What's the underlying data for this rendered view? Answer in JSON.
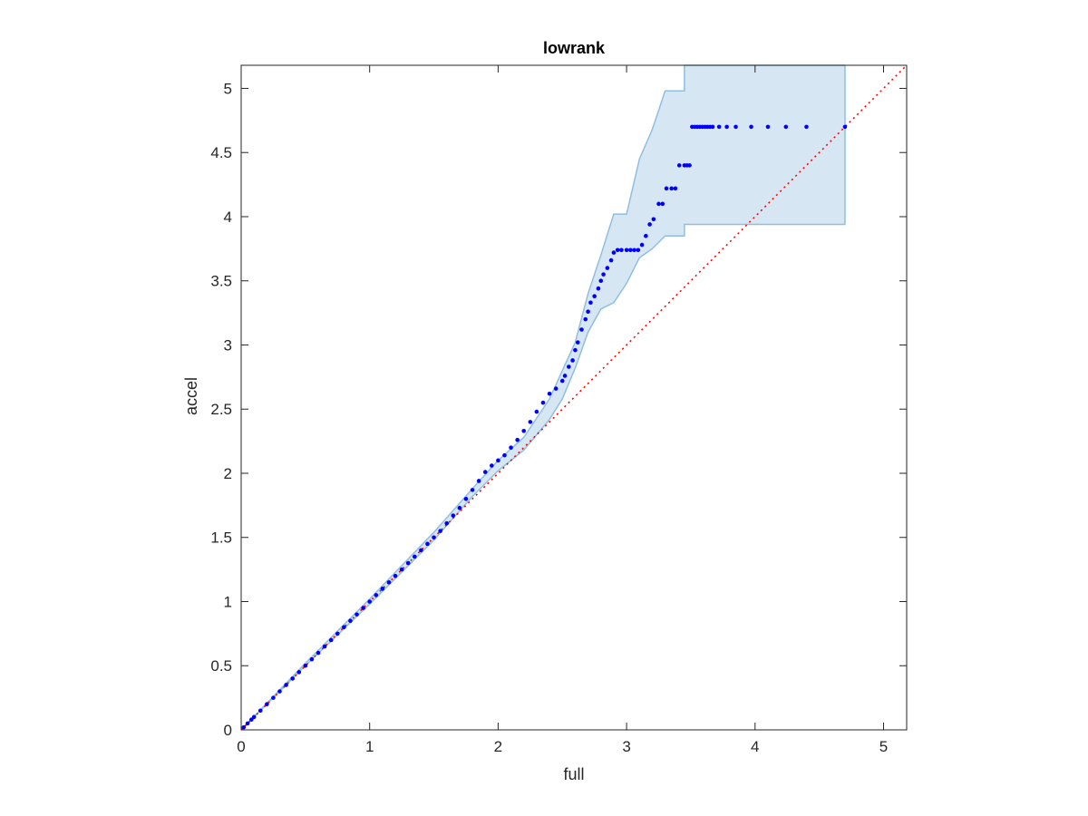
{
  "chart_data": {
    "type": "scatter",
    "title": "lowrank",
    "xlabel": "full",
    "ylabel": "accel",
    "xlim": [
      0,
      5.18
    ],
    "ylim": [
      0,
      5.18
    ],
    "xticks": [
      "0",
      "1",
      "2",
      "3",
      "4",
      "5"
    ],
    "yticks": [
      "0",
      "0.5",
      "1",
      "1.5",
      "2",
      "2.5",
      "3",
      "3.5",
      "4",
      "4.5",
      "5"
    ],
    "grid": false,
    "colors": {
      "points": "#0000ff",
      "reference_line": "#ff0000",
      "band_fill": "#d6e6f3",
      "band_edge": "#8fbfe0",
      "axes": "#262626"
    },
    "reference_line": {
      "style": "dotted",
      "points": [
        [
          0,
          0
        ],
        [
          5.18,
          5.18
        ]
      ]
    },
    "confidence_band": {
      "upper": [
        [
          0,
          0
        ],
        [
          0.5,
          0.52
        ],
        [
          1,
          1.02
        ],
        [
          1.5,
          1.54
        ],
        [
          1.8,
          1.88
        ],
        [
          2,
          2.1
        ],
        [
          2.2,
          2.28
        ],
        [
          2.4,
          2.58
        ],
        [
          2.5,
          2.8
        ],
        [
          2.6,
          3.02
        ],
        [
          2.7,
          3.4
        ],
        [
          2.8,
          3.7
        ],
        [
          2.9,
          4.02
        ],
        [
          3.0,
          4.02
        ],
        [
          3.1,
          4.45
        ],
        [
          3.2,
          4.68
        ],
        [
          3.3,
          4.98
        ],
        [
          3.45,
          4.98
        ],
        [
          3.45,
          5.18
        ],
        [
          4.7,
          5.18
        ]
      ],
      "lower": [
        [
          0,
          0
        ],
        [
          0.5,
          0.5
        ],
        [
          1,
          0.98
        ],
        [
          1.5,
          1.48
        ],
        [
          1.8,
          1.82
        ],
        [
          2,
          2.02
        ],
        [
          2.2,
          2.18
        ],
        [
          2.4,
          2.42
        ],
        [
          2.5,
          2.58
        ],
        [
          2.6,
          2.82
        ],
        [
          2.7,
          3.1
        ],
        [
          2.8,
          3.28
        ],
        [
          2.9,
          3.33
        ],
        [
          3.0,
          3.48
        ],
        [
          3.1,
          3.68
        ],
        [
          3.2,
          3.75
        ],
        [
          3.3,
          3.85
        ],
        [
          3.45,
          3.85
        ],
        [
          3.45,
          3.94
        ],
        [
          4.7,
          3.94
        ]
      ]
    },
    "series": [
      {
        "x": [
          0.02,
          0.05,
          0.08,
          0.1,
          0.15,
          0.2,
          0.25,
          0.3,
          0.35,
          0.4,
          0.45,
          0.5,
          0.55,
          0.6,
          0.65,
          0.7,
          0.75,
          0.8,
          0.85,
          0.9,
          0.95,
          1.0,
          1.05,
          1.1,
          1.15,
          1.2,
          1.25,
          1.3,
          1.35,
          1.4,
          1.45,
          1.5,
          1.55,
          1.6,
          1.65,
          1.7,
          1.75,
          1.8,
          1.85,
          1.9,
          1.95,
          2.0,
          2.05,
          2.1,
          2.15,
          2.2,
          2.25,
          2.3,
          2.35,
          2.4,
          2.45,
          2.5,
          2.52,
          2.55,
          2.58,
          2.6,
          2.62,
          2.65,
          2.68,
          2.7,
          2.72,
          2.75,
          2.78,
          2.8,
          2.82,
          2.85,
          2.88,
          2.9,
          2.93,
          2.96,
          3.0,
          3.03,
          3.06,
          3.09,
          3.12,
          3.15,
          3.18,
          3.21,
          3.25,
          3.28,
          3.31,
          3.35,
          3.38,
          3.41,
          3.45,
          3.47,
          3.49,
          3.51,
          3.53,
          3.55,
          3.57,
          3.59,
          3.61,
          3.63,
          3.65,
          3.67,
          3.72,
          3.78,
          3.85,
          3.97,
          4.1,
          4.24,
          4.4,
          4.7
        ],
        "y": [
          0.02,
          0.05,
          0.08,
          0.1,
          0.15,
          0.2,
          0.25,
          0.3,
          0.35,
          0.4,
          0.45,
          0.5,
          0.55,
          0.6,
          0.65,
          0.7,
          0.75,
          0.8,
          0.85,
          0.9,
          0.95,
          1.0,
          1.05,
          1.1,
          1.15,
          1.2,
          1.25,
          1.3,
          1.35,
          1.4,
          1.45,
          1.5,
          1.55,
          1.61,
          1.67,
          1.73,
          1.8,
          1.87,
          1.94,
          2.01,
          2.06,
          2.1,
          2.14,
          2.2,
          2.26,
          2.33,
          2.4,
          2.48,
          2.55,
          2.62,
          2.66,
          2.72,
          2.76,
          2.83,
          2.88,
          2.96,
          3.02,
          3.12,
          3.2,
          3.26,
          3.33,
          3.38,
          3.44,
          3.5,
          3.55,
          3.6,
          3.66,
          3.72,
          3.74,
          3.74,
          3.74,
          3.74,
          3.74,
          3.74,
          3.78,
          3.85,
          3.94,
          3.98,
          4.1,
          4.1,
          4.22,
          4.22,
          4.22,
          4.4,
          4.4,
          4.4,
          4.4,
          4.7,
          4.7,
          4.7,
          4.7,
          4.7,
          4.7,
          4.7,
          4.7,
          4.7,
          4.7,
          4.7,
          4.7,
          4.7,
          4.7,
          4.7,
          4.7,
          4.7
        ]
      }
    ]
  }
}
